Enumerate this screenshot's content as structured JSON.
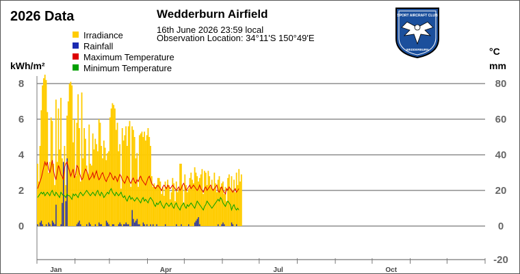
{
  "header": {
    "year_title": "2026 Data",
    "station_name": "Wedderburn Airfield",
    "observation_time": "16th June 2026  23:59 local",
    "observation_location": "Observation Location: 34°11'S 150°49'E"
  },
  "logo": {
    "icon": "eagle-shield-icon",
    "text_top": "SPORT AIRCRAFT CLUB",
    "text_bottom": "WEDDERBURN"
  },
  "units": {
    "left": "kWh/m²",
    "right_temp": "°C",
    "right_rain": "mm"
  },
  "colors": {
    "irradiance": "#FFCC00",
    "rainfall": "#1A2AB0",
    "max_temp": "#DD0000",
    "min_temp": "#00A000",
    "grid": "#555555",
    "tick_text": "#666666"
  },
  "chart_data": {
    "type": "bar",
    "title": "2026 Data",
    "legend": [
      "Irradiance",
      "Rainfall",
      "Maximum Temperature",
      "Minimum Temperature"
    ],
    "legend_position": "top-left",
    "grid": true,
    "x_ticks": [
      "Jan",
      "Apr",
      "Jul",
      "Oct"
    ],
    "left_axis": {
      "label": "kWh/m²",
      "ticks": [
        "8",
        "6",
        "4",
        "2",
        "0"
      ],
      "range": [
        -2,
        8.3
      ]
    },
    "right_axis": {
      "label": "°C mm",
      "ticks": [
        "80",
        "60",
        "40",
        "20",
        "0",
        "-20"
      ],
      "range": [
        -20,
        83
      ]
    },
    "series": [
      {
        "name": "Irradiance",
        "kind": "bar",
        "axis": "left",
        "unit": "kWh/m²",
        "values": [
          3.5,
          2.5,
          4.5,
          6.5,
          7.9,
          8.3,
          8.5,
          8.2,
          6.4,
          3.0,
          3.6,
          6.1,
          5.9,
          3.5,
          2.3,
          7.1,
          3.6,
          6.6,
          4.3,
          7.2,
          3.8,
          3.0,
          4.5,
          2.3,
          6.2,
          7.0,
          8.0,
          8.1,
          7.9,
          4.7,
          6.0,
          2.8,
          5.8,
          7.4,
          5.5,
          2.5,
          7.5,
          3.8,
          5.5,
          4.9,
          3.4,
          2.9,
          5.7,
          3.5,
          3.4,
          5.2,
          4.3,
          4.9,
          4.6,
          4.2,
          6.0,
          5.8,
          4.5,
          3.8,
          4.8,
          4.4,
          3.7,
          4.1,
          4.2,
          6.1,
          6.6,
          6.9,
          6.8,
          6.6,
          5.4,
          5.8,
          4.2,
          4.6,
          2.1,
          5.5,
          4.8,
          5.1,
          5.6,
          4.5,
          5.6,
          5.9,
          2.2,
          5.6,
          5.4,
          5.0,
          3.8,
          4.1,
          2.2,
          5.1,
          5.2,
          5.3,
          5.0,
          5.3,
          4.8,
          5.1,
          5.5,
          5.0,
          4.5,
          2.8,
          2.2,
          2.4,
          2.2,
          2.3,
          2.7,
          2.7,
          2.5,
          1.8,
          2.2,
          1.7,
          2.5,
          2.2,
          2.6,
          2.3,
          1.5,
          1.9,
          2.7,
          2.4,
          1.4,
          2.5,
          1.9,
          2.1,
          3.5,
          3.5,
          2.3,
          1.3,
          2.9,
          2.3,
          1.9,
          2.1,
          2.7,
          3.0,
          2.6,
          2.4,
          3.3,
          3.0,
          2.8,
          2.5,
          2.7,
          2.9,
          3.2,
          1.8,
          3.1,
          3.0,
          2.3,
          3.1,
          2.8,
          2.2,
          2.6,
          2.1,
          3.0,
          2.4,
          1.9,
          2.6,
          2.8,
          2.2,
          2.4,
          2.5,
          1.8,
          2.2,
          1.4,
          2.7,
          2.9,
          2.1,
          2.8,
          2.0,
          2.6,
          1.9,
          3.0,
          2.3,
          3.2,
          2.5,
          2.9
        ]
      },
      {
        "name": "Rainfall",
        "kind": "bar",
        "axis": "right",
        "unit": "mm",
        "values": [
          1,
          0,
          2,
          3,
          1,
          0,
          0,
          1,
          0,
          2,
          1,
          0,
          3,
          2,
          1,
          12,
          0,
          0,
          0,
          1,
          13,
          36,
          0,
          14,
          38,
          0,
          0,
          0,
          0,
          0,
          0,
          0,
          1,
          2,
          3,
          1,
          0,
          0,
          0,
          0,
          1,
          0,
          2,
          1,
          0,
          0,
          0,
          1,
          0,
          0,
          2,
          1,
          1,
          0,
          0,
          0,
          3,
          2,
          1,
          0,
          0,
          1,
          1,
          0,
          0,
          0,
          1,
          2,
          1,
          0,
          1,
          1,
          2,
          1,
          1,
          0,
          0,
          9,
          4,
          2,
          3,
          4,
          1,
          1,
          0,
          0,
          2,
          1,
          0,
          1,
          0,
          0,
          1,
          0,
          1,
          0,
          0,
          1,
          0,
          0,
          0,
          0,
          0,
          0,
          1,
          0,
          0,
          0,
          0,
          0,
          0,
          0,
          0,
          1,
          0,
          0,
          0,
          1,
          0,
          0,
          0,
          0,
          0,
          1,
          0,
          0,
          0,
          0,
          2,
          3,
          4,
          5,
          1,
          0,
          0,
          0,
          0,
          0,
          0,
          0,
          0,
          0,
          0,
          0,
          0,
          0,
          0,
          1,
          0,
          0,
          1,
          2,
          1,
          0,
          0,
          0,
          0,
          0,
          2,
          1,
          0,
          0,
          1,
          0,
          0,
          0,
          0
        ]
      },
      {
        "name": "Maximum Temperature",
        "kind": "line",
        "axis": "right",
        "unit": "°C",
        "values": [
          21,
          23,
          25,
          27,
          30,
          33,
          36,
          34,
          36,
          32,
          30,
          33,
          37,
          31,
          28,
          26,
          30,
          34,
          32,
          29,
          28,
          26,
          33,
          35,
          36,
          33,
          31,
          28,
          30,
          32,
          27,
          29,
          34,
          33,
          30,
          28,
          26,
          27,
          30,
          32,
          31,
          29,
          26,
          27,
          28,
          30,
          27,
          29,
          31,
          28,
          26,
          27,
          29,
          30,
          28,
          26,
          25,
          27,
          28,
          30,
          29,
          27,
          26,
          28,
          27,
          25,
          27,
          29,
          28,
          26,
          25,
          24,
          26,
          28,
          27,
          25,
          24,
          26,
          27,
          25,
          24,
          26,
          25,
          27,
          28,
          26,
          25,
          24,
          23,
          25,
          27,
          28,
          26,
          24,
          23,
          22,
          21,
          22,
          23,
          22,
          21,
          20,
          22,
          23,
          22,
          21,
          23,
          22,
          21,
          22,
          23,
          22,
          21,
          20,
          21,
          22,
          20,
          21,
          23,
          24,
          22,
          20,
          21,
          22,
          23,
          21,
          22,
          23,
          22,
          21,
          20,
          21,
          23,
          21,
          20,
          19,
          21,
          22,
          20,
          21,
          22,
          23,
          21,
          20,
          21,
          22,
          23,
          20,
          19,
          21,
          22,
          20,
          19,
          18,
          21,
          20,
          22,
          21,
          20,
          19,
          20,
          21,
          19,
          20,
          21
        ]
      },
      {
        "name": "Minimum Temperature",
        "kind": "line",
        "axis": "right",
        "unit": "°C",
        "values": [
          16,
          17,
          18,
          19,
          18,
          19,
          17,
          18,
          19,
          18,
          17,
          19,
          20,
          18,
          17,
          19,
          18,
          17,
          16,
          19,
          18,
          17,
          17,
          16,
          18,
          17,
          17,
          16,
          15,
          18,
          17,
          18,
          17,
          16,
          18,
          19,
          18,
          17,
          18,
          19,
          20,
          19,
          18,
          17,
          18,
          19,
          18,
          17,
          19,
          20,
          18,
          17,
          19,
          18,
          16,
          17,
          18,
          19,
          18,
          20,
          21,
          19,
          18,
          17,
          19,
          18,
          17,
          18,
          19,
          17,
          16,
          17,
          15,
          14,
          16,
          17,
          15,
          16,
          15,
          14,
          15,
          16,
          15,
          14,
          13,
          15,
          16,
          14,
          15,
          14,
          13,
          15,
          16,
          15,
          14,
          12,
          11,
          13,
          12,
          13,
          14,
          12,
          11,
          10,
          12,
          13,
          12,
          11,
          12,
          13,
          11,
          10,
          12,
          13,
          11,
          10,
          9,
          11,
          12,
          13,
          11,
          10,
          12,
          11,
          12,
          13,
          12,
          11,
          10,
          12,
          14,
          13,
          12,
          11,
          10,
          9,
          11,
          12,
          14,
          13,
          12,
          11,
          10,
          11,
          12,
          13,
          14,
          15,
          14,
          16,
          15,
          13,
          12,
          11,
          13,
          14,
          13,
          12,
          9,
          11,
          12,
          10,
          9,
          10,
          9
        ]
      }
    ]
  }
}
